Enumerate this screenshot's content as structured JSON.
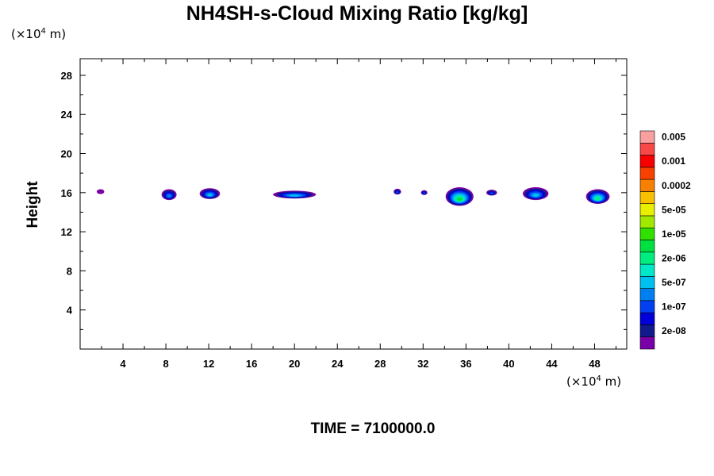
{
  "chart_data": {
    "type": "heatmap",
    "title": "NH4SH-s-Cloud Mixing Ratio [kg/kg]",
    "ylabel": "Height",
    "xlabel": "",
    "x_unit": "(×10",
    "x_unit_exp": "4",
    "x_unit_tail": " m)",
    "y_unit": "(×10",
    "y_unit_exp": "4",
    "y_unit_tail": " m)",
    "xlim": [
      0,
      51
    ],
    "ylim": [
      0,
      29.7
    ],
    "x_ticks": [
      4,
      8,
      12,
      16,
      20,
      24,
      28,
      32,
      36,
      40,
      44,
      48
    ],
    "y_ticks": [
      4,
      8,
      12,
      16,
      20,
      24,
      28
    ],
    "footer": "TIME = 7100000.0",
    "colorbar": {
      "colors": [
        "#7a00a8",
        "#101a8c",
        "#0000d8",
        "#0040f0",
        "#0080f0",
        "#00c0f0",
        "#00e8c8",
        "#00ee80",
        "#00e040",
        "#30e000",
        "#a0e800",
        "#e8f000",
        "#f8c000",
        "#f88000",
        "#f84000",
        "#f80000",
        "#f84848",
        "#f8a0a0"
      ],
      "labels": [
        {
          "text": "2e-08",
          "index": 1
        },
        {
          "text": "1e-07",
          "index": 3
        },
        {
          "text": "5e-07",
          "index": 5
        },
        {
          "text": "2e-06",
          "index": 7
        },
        {
          "text": "1e-05",
          "index": 9
        },
        {
          "text": "5e-05",
          "index": 11
        },
        {
          "text": "0.0002",
          "index": 13
        },
        {
          "text": "0.001",
          "index": 15
        },
        {
          "text": "0.005",
          "index": 17
        }
      ]
    },
    "clouds": [
      {
        "x": 1.9,
        "y": 16.1,
        "w": 0.7,
        "h": 0.5,
        "level": 0
      },
      {
        "x": 8.3,
        "y": 15.8,
        "w": 1.4,
        "h": 1.1,
        "level": 4
      },
      {
        "x": 12.1,
        "y": 15.9,
        "w": 1.9,
        "h": 1.1,
        "level": 5
      },
      {
        "x": 20.0,
        "y": 15.8,
        "w": 4.0,
        "h": 0.8,
        "level": 5
      },
      {
        "x": 29.6,
        "y": 16.1,
        "w": 0.7,
        "h": 0.6,
        "level": 3
      },
      {
        "x": 32.1,
        "y": 16.0,
        "w": 0.6,
        "h": 0.5,
        "level": 3
      },
      {
        "x": 35.4,
        "y": 15.6,
        "w": 2.6,
        "h": 1.9,
        "level": 8
      },
      {
        "x": 38.4,
        "y": 16.0,
        "w": 1.0,
        "h": 0.6,
        "level": 3
      },
      {
        "x": 42.5,
        "y": 15.9,
        "w": 2.4,
        "h": 1.3,
        "level": 5
      },
      {
        "x": 48.3,
        "y": 15.6,
        "w": 2.2,
        "h": 1.5,
        "level": 7
      }
    ]
  }
}
